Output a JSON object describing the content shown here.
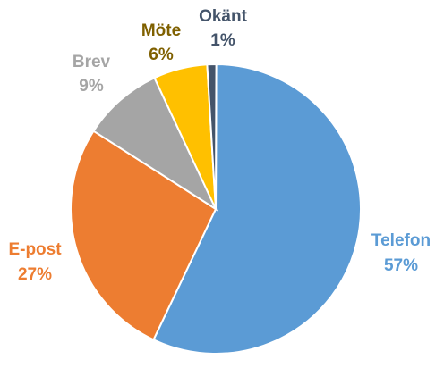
{
  "chart_data": {
    "type": "pie",
    "title": "",
    "slices": [
      {
        "label": "Telefon",
        "value": 57,
        "display": "57%",
        "color": "#5B9BD5"
      },
      {
        "label": "E-post",
        "value": 27,
        "display": "27%",
        "color": "#ED7D31"
      },
      {
        "label": "Brev",
        "value": 9,
        "display": "9%",
        "color": "#A5A5A5"
      },
      {
        "label": "Möte",
        "value": 6,
        "display": "6%",
        "color": "#FFC000"
      },
      {
        "label": "Okänt",
        "value": 1,
        "display": "1%",
        "color": "#44546A"
      }
    ],
    "label_colors": [
      "#5B9BD5",
      "#ED7D31",
      "#A5A5A5",
      "#7F6000",
      "#44546A"
    ],
    "legend": "none"
  }
}
